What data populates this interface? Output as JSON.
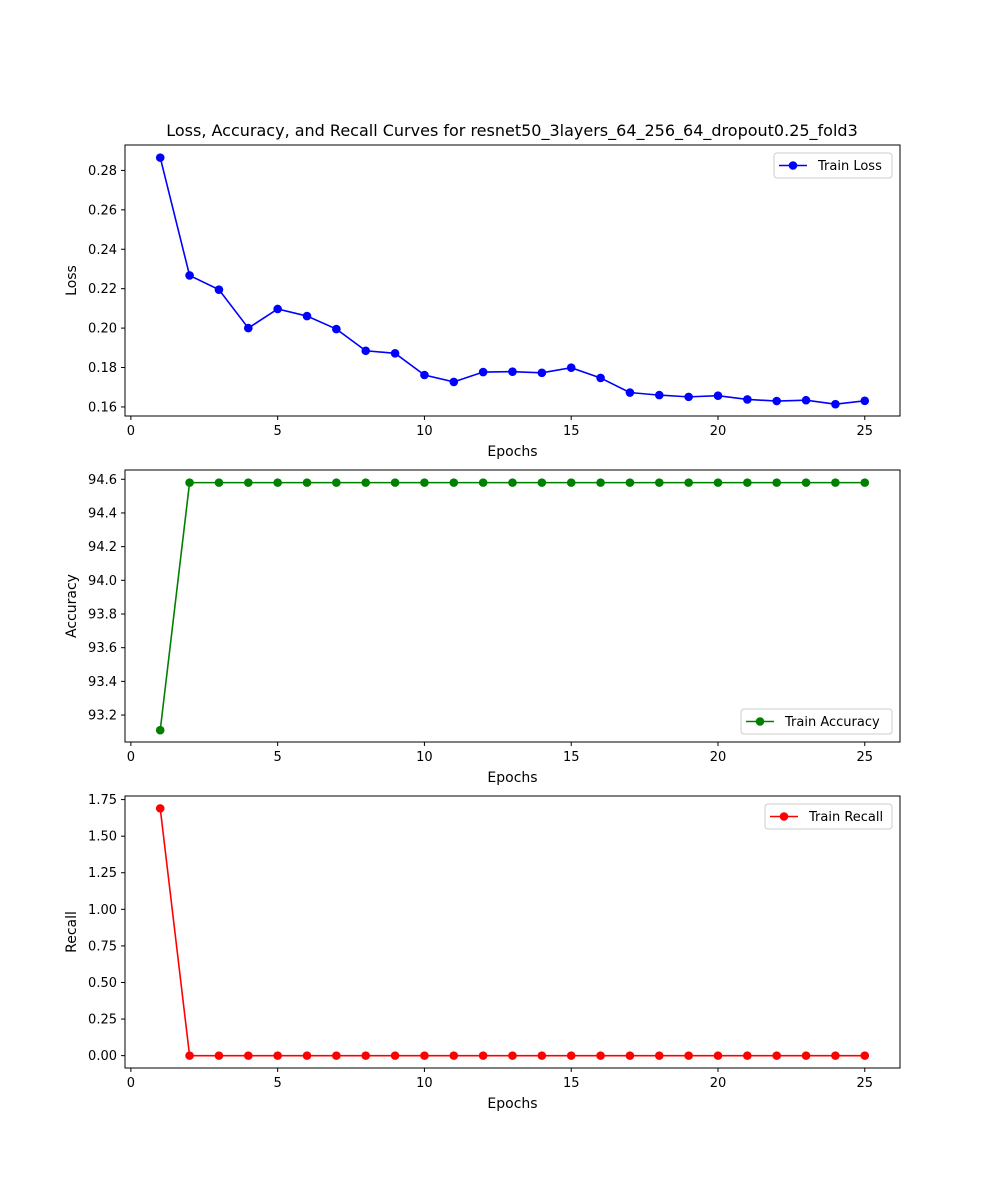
{
  "figure_title": "Loss, Accuracy, and Recall Curves for resnet50_3layers_64_256_64_dropout0.25_fold3",
  "chart_data": [
    {
      "type": "line",
      "title": "Loss, Accuracy, and Recall Curves for resnet50_3layers_64_256_64_dropout0.25_fold3",
      "xlabel": "Epochs",
      "ylabel": "Loss",
      "xlim": [
        -0.2,
        26.2
      ],
      "ylim": [
        0.1554,
        0.2929
      ],
      "xticks": [
        0,
        5,
        10,
        15,
        20,
        25
      ],
      "yticks": [
        0.16,
        0.18,
        0.2,
        0.22,
        0.24,
        0.26,
        0.28
      ],
      "ytick_labels": [
        "0.16",
        "0.18",
        "0.20",
        "0.22",
        "0.24",
        "0.26",
        "0.28"
      ],
      "legend_position": "upper-right",
      "grid": false,
      "series": [
        {
          "name": "Train Loss",
          "color": "#0000ff",
          "x": [
            1,
            2,
            3,
            4,
            5,
            6,
            7,
            8,
            9,
            10,
            11,
            12,
            13,
            14,
            15,
            16,
            17,
            18,
            19,
            20,
            21,
            22,
            23,
            24,
            25
          ],
          "values": [
            0.2865,
            0.2267,
            0.2195,
            0.2,
            0.2097,
            0.2061,
            0.1995,
            0.1885,
            0.1872,
            0.1762,
            0.1727,
            0.1777,
            0.1779,
            0.1773,
            0.1799,
            0.1747,
            0.1673,
            0.166,
            0.1651,
            0.1657,
            0.1638,
            0.163,
            0.1634,
            0.1614,
            0.1631
          ]
        }
      ]
    },
    {
      "type": "line",
      "title": "",
      "xlabel": "Epochs",
      "ylabel": "Accuracy",
      "xlim": [
        -0.2,
        26.2
      ],
      "ylim": [
        93.04,
        94.655
      ],
      "xticks": [
        0,
        5,
        10,
        15,
        20,
        25
      ],
      "yticks": [
        93.2,
        93.4,
        93.6,
        93.8,
        94.0,
        94.2,
        94.4,
        94.6
      ],
      "ytick_labels": [
        "93.2",
        "93.4",
        "93.6",
        "93.8",
        "94.0",
        "94.2",
        "94.4",
        "94.6"
      ],
      "legend_position": "lower-right",
      "grid": false,
      "series": [
        {
          "name": "Train Accuracy",
          "color": "#008000",
          "x": [
            1,
            2,
            3,
            4,
            5,
            6,
            7,
            8,
            9,
            10,
            11,
            12,
            13,
            14,
            15,
            16,
            17,
            18,
            19,
            20,
            21,
            22,
            23,
            24,
            25
          ],
          "values": [
            93.11,
            94.58,
            94.58,
            94.58,
            94.58,
            94.58,
            94.58,
            94.58,
            94.58,
            94.58,
            94.58,
            94.58,
            94.58,
            94.58,
            94.58,
            94.58,
            94.58,
            94.58,
            94.58,
            94.58,
            94.58,
            94.58,
            94.58,
            94.58,
            94.58
          ]
        }
      ]
    },
    {
      "type": "line",
      "title": "",
      "xlabel": "Epochs",
      "ylabel": "Recall",
      "xlim": [
        -0.2,
        26.2
      ],
      "ylim": [
        -0.0845,
        1.7745
      ],
      "xticks": [
        0,
        5,
        10,
        15,
        20,
        25
      ],
      "yticks": [
        0,
        0.25,
        0.5,
        0.75,
        1.0,
        1.25,
        1.5,
        1.75
      ],
      "ytick_labels": [
        "0.00",
        "0.25",
        "0.50",
        "0.75",
        "1.00",
        "1.25",
        "1.50",
        "1.75"
      ],
      "legend_position": "upper-right",
      "grid": false,
      "series": [
        {
          "name": "Train Recall",
          "color": "#ff0000",
          "x": [
            1,
            2,
            3,
            4,
            5,
            6,
            7,
            8,
            9,
            10,
            11,
            12,
            13,
            14,
            15,
            16,
            17,
            18,
            19,
            20,
            21,
            22,
            23,
            24,
            25
          ],
          "values": [
            1.69,
            0,
            0,
            0,
            0,
            0,
            0,
            0,
            0,
            0,
            0,
            0,
            0,
            0,
            0,
            0,
            0,
            0,
            0,
            0,
            0,
            0,
            0,
            0,
            0
          ]
        }
      ]
    }
  ]
}
